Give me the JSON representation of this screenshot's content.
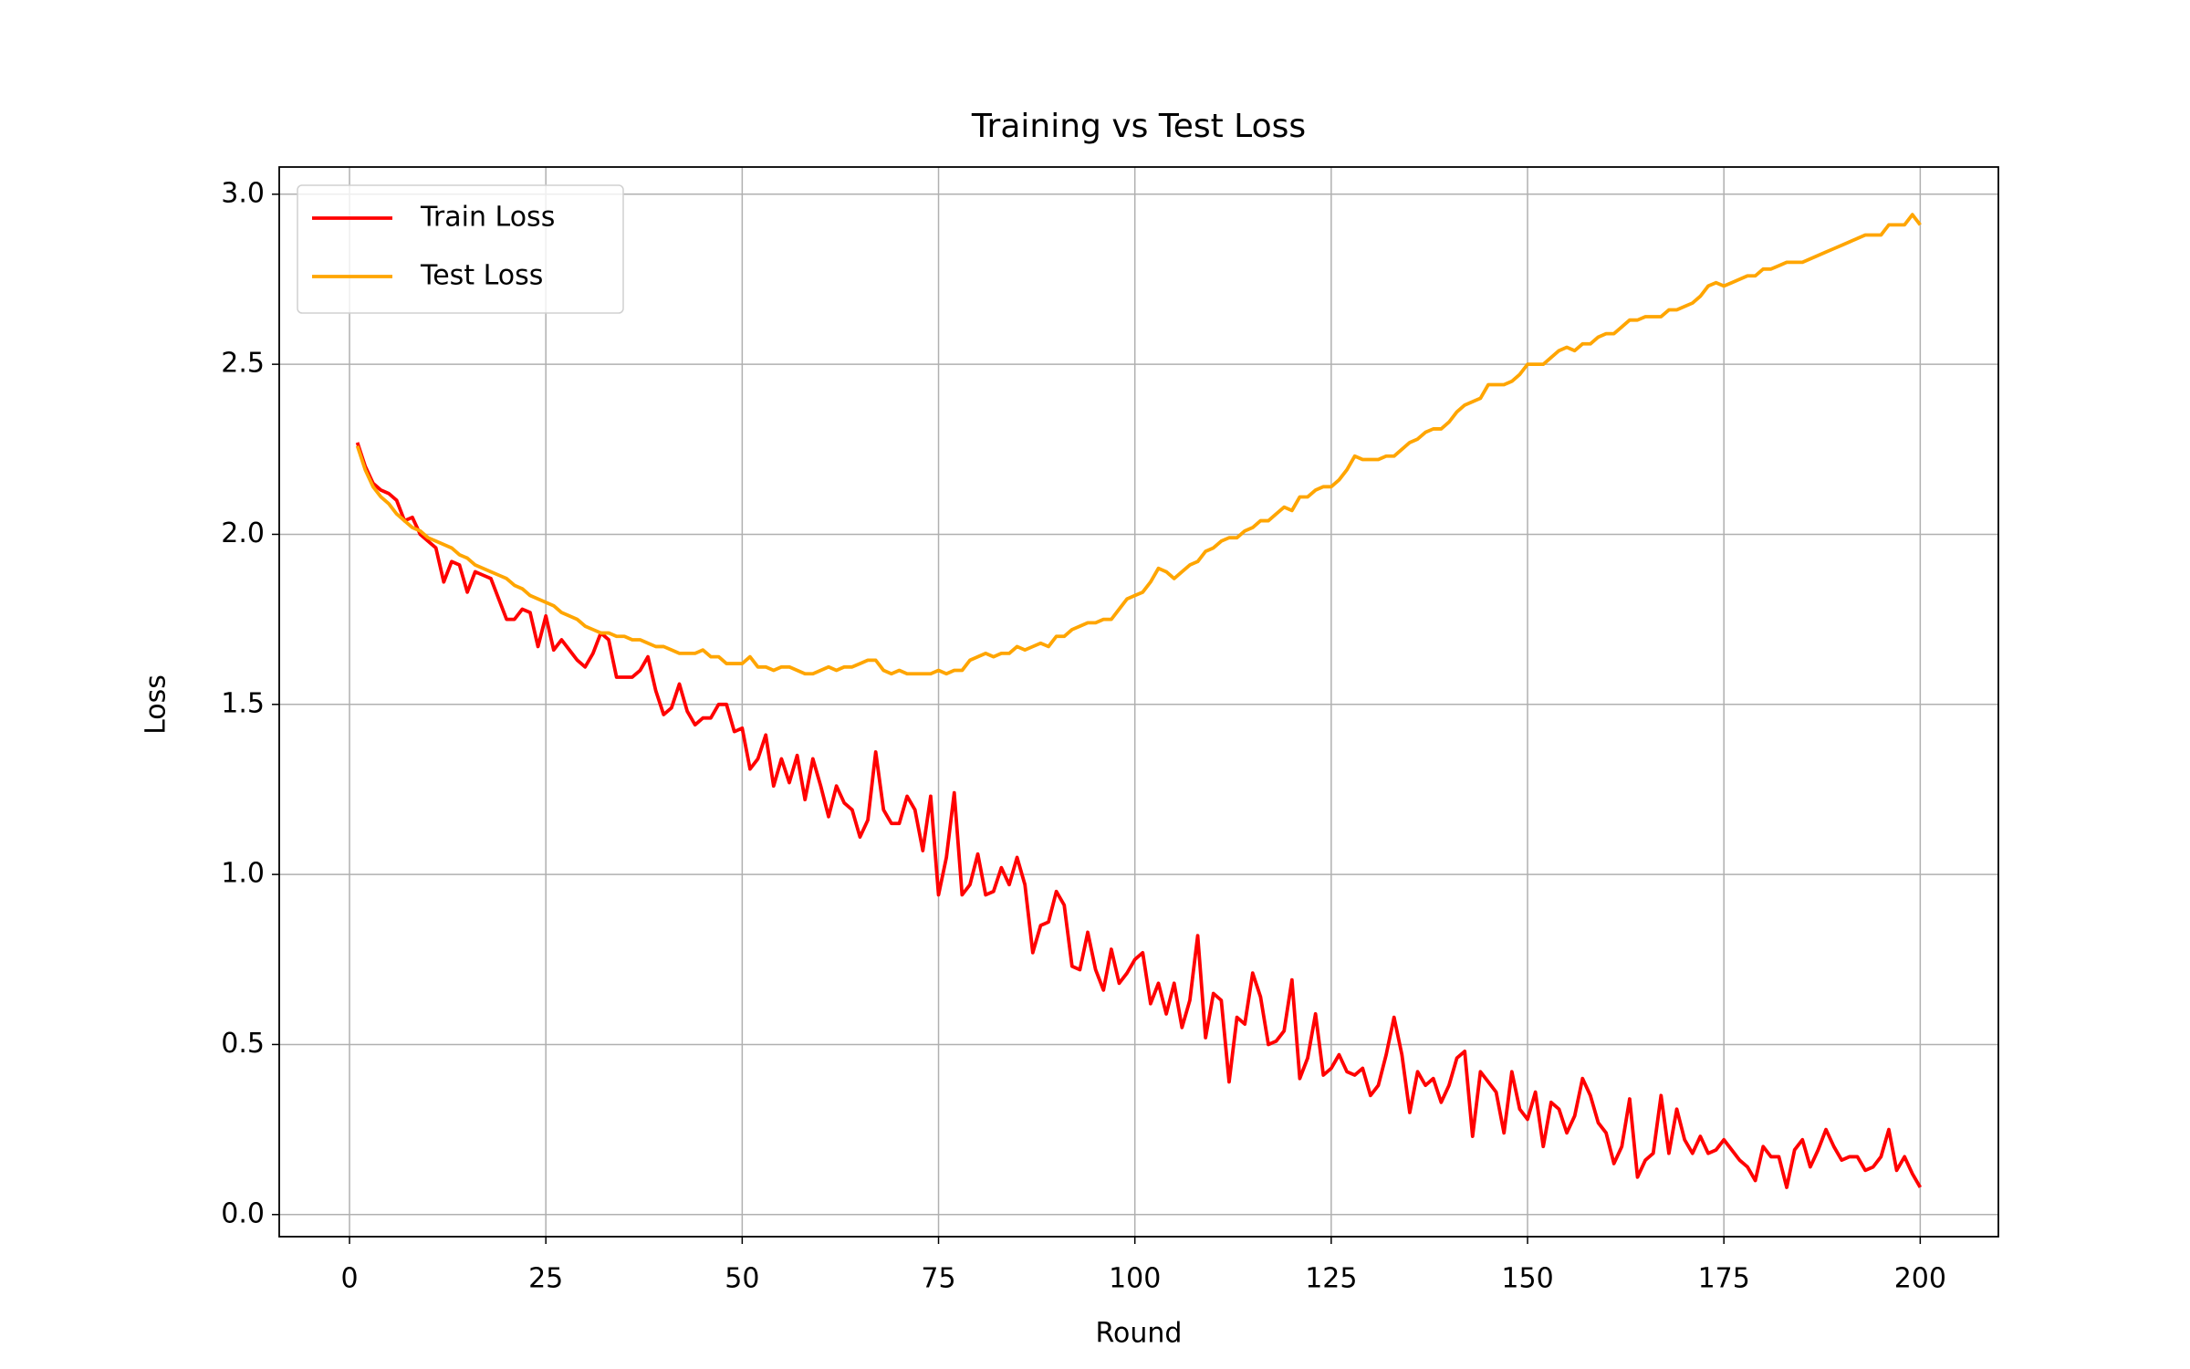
{
  "chart_data": {
    "type": "line",
    "title": "Training vs Test Loss",
    "x_label": "Round",
    "y_label": "Loss",
    "xlim": [
      -8.95,
      209.95
    ],
    "xticks": [
      0,
      25,
      50,
      75,
      100,
      125,
      150,
      175,
      200
    ],
    "ylim": [
      -0.065,
      3.08
    ],
    "yticks": [
      {
        "value": 0,
        "label": "0.0"
      },
      {
        "value": 0.5,
        "label": "0.5"
      },
      {
        "value": 1,
        "label": "1.0"
      },
      {
        "value": 1.5,
        "label": "1.5"
      },
      {
        "value": 2,
        "label": "2.0"
      },
      {
        "value": 2.5,
        "label": "2.5"
      },
      {
        "value": 3,
        "label": "3.0"
      }
    ],
    "grid": true,
    "legend": "upper left",
    "x": [
      1,
      2,
      3,
      4,
      5,
      6,
      7,
      8,
      9,
      10,
      11,
      12,
      13,
      14,
      15,
      16,
      17,
      18,
      19,
      20,
      21,
      22,
      23,
      24,
      25,
      26,
      27,
      28,
      29,
      30,
      31,
      32,
      33,
      34,
      35,
      36,
      37,
      38,
      39,
      40,
      41,
      42,
      43,
      44,
      45,
      46,
      47,
      48,
      49,
      50,
      51,
      52,
      53,
      54,
      55,
      56,
      57,
      58,
      59,
      60,
      61,
      62,
      63,
      64,
      65,
      66,
      67,
      68,
      69,
      70,
      71,
      72,
      73,
      74,
      75,
      76,
      77,
      78,
      79,
      80,
      81,
      82,
      83,
      84,
      85,
      86,
      87,
      88,
      89,
      90,
      91,
      92,
      93,
      94,
      95,
      96,
      97,
      98,
      99,
      100,
      101,
      102,
      103,
      104,
      105,
      106,
      107,
      108,
      109,
      110,
      111,
      112,
      113,
      114,
      115,
      116,
      117,
      118,
      119,
      120,
      121,
      122,
      123,
      124,
      125,
      126,
      127,
      128,
      129,
      130,
      131,
      132,
      133,
      134,
      135,
      136,
      137,
      138,
      139,
      140,
      141,
      142,
      143,
      144,
      145,
      146,
      147,
      148,
      149,
      150,
      151,
      152,
      153,
      154,
      155,
      156,
      157,
      158,
      159,
      160,
      161,
      162,
      163,
      164,
      165,
      166,
      167,
      168,
      169,
      170,
      171,
      172,
      173,
      174,
      175,
      176,
      177,
      178,
      179,
      180,
      181,
      182,
      183,
      184,
      185,
      186,
      187,
      188,
      189,
      190,
      191,
      192,
      193,
      194,
      195,
      196,
      197,
      198,
      199,
      200
    ],
    "series": [
      {
        "name": "Train Loss",
        "color": "#ff0000",
        "values": [
          2.27,
          2.2,
          2.15,
          2.13,
          2.12,
          2.1,
          2.04,
          2.05,
          2.0,
          1.98,
          1.96,
          1.86,
          1.92,
          1.91,
          1.83,
          1.89,
          1.88,
          1.87,
          1.81,
          1.75,
          1.75,
          1.78,
          1.77,
          1.67,
          1.76,
          1.66,
          1.69,
          1.66,
          1.63,
          1.61,
          1.65,
          1.71,
          1.69,
          1.58,
          1.58,
          1.58,
          1.6,
          1.64,
          1.54,
          1.47,
          1.49,
          1.56,
          1.48,
          1.44,
          1.46,
          1.46,
          1.5,
          1.5,
          1.42,
          1.43,
          1.31,
          1.34,
          1.41,
          1.26,
          1.34,
          1.27,
          1.35,
          1.22,
          1.34,
          1.26,
          1.17,
          1.26,
          1.21,
          1.19,
          1.11,
          1.16,
          1.36,
          1.19,
          1.15,
          1.15,
          1.23,
          1.19,
          1.07,
          1.23,
          0.94,
          1.05,
          1.24,
          0.94,
          0.97,
          1.06,
          0.94,
          0.95,
          1.02,
          0.97,
          1.05,
          0.97,
          0.77,
          0.85,
          0.86,
          0.95,
          0.91,
          0.73,
          0.72,
          0.83,
          0.72,
          0.66,
          0.78,
          0.68,
          0.71,
          0.75,
          0.77,
          0.62,
          0.68,
          0.59,
          0.68,
          0.55,
          0.63,
          0.82,
          0.52,
          0.65,
          0.63,
          0.39,
          0.58,
          0.56,
          0.71,
          0.64,
          0.5,
          0.51,
          0.54,
          0.69,
          0.4,
          0.46,
          0.59,
          0.41,
          0.43,
          0.47,
          0.42,
          0.41,
          0.43,
          0.35,
          0.38,
          0.47,
          0.58,
          0.47,
          0.3,
          0.42,
          0.38,
          0.4,
          0.33,
          0.38,
          0.46,
          0.48,
          0.23,
          0.42,
          0.39,
          0.36,
          0.24,
          0.42,
          0.31,
          0.28,
          0.36,
          0.2,
          0.33,
          0.31,
          0.24,
          0.29,
          0.4,
          0.35,
          0.27,
          0.24,
          0.15,
          0.2,
          0.34,
          0.11,
          0.16,
          0.18,
          0.35,
          0.18,
          0.31,
          0.22,
          0.18,
          0.23,
          0.18,
          0.19,
          0.22,
          0.19,
          0.16,
          0.14,
          0.1,
          0.2,
          0.17,
          0.17,
          0.08,
          0.19,
          0.22,
          0.14,
          0.19,
          0.25,
          0.2,
          0.16,
          0.17,
          0.17,
          0.13,
          0.14,
          0.17,
          0.25,
          0.13,
          0.17,
          0.12,
          0.08
        ]
      },
      {
        "name": "Test Loss",
        "color": "#ffa500",
        "values": [
          2.26,
          2.19,
          2.14,
          2.11,
          2.09,
          2.06,
          2.04,
          2.02,
          2.01,
          1.99,
          1.98,
          1.97,
          1.96,
          1.94,
          1.93,
          1.91,
          1.9,
          1.89,
          1.88,
          1.87,
          1.85,
          1.84,
          1.82,
          1.81,
          1.8,
          1.79,
          1.77,
          1.76,
          1.75,
          1.73,
          1.72,
          1.71,
          1.71,
          1.7,
          1.7,
          1.69,
          1.69,
          1.68,
          1.67,
          1.67,
          1.66,
          1.65,
          1.65,
          1.65,
          1.66,
          1.64,
          1.64,
          1.62,
          1.62,
          1.62,
          1.64,
          1.61,
          1.61,
          1.6,
          1.61,
          1.61,
          1.6,
          1.59,
          1.59,
          1.6,
          1.61,
          1.6,
          1.61,
          1.61,
          1.62,
          1.63,
          1.63,
          1.6,
          1.59,
          1.6,
          1.59,
          1.59,
          1.59,
          1.59,
          1.6,
          1.59,
          1.6,
          1.6,
          1.63,
          1.64,
          1.65,
          1.64,
          1.65,
          1.65,
          1.67,
          1.66,
          1.67,
          1.68,
          1.67,
          1.7,
          1.7,
          1.72,
          1.73,
          1.74,
          1.74,
          1.75,
          1.75,
          1.78,
          1.81,
          1.82,
          1.83,
          1.86,
          1.9,
          1.89,
          1.87,
          1.89,
          1.91,
          1.92,
          1.95,
          1.96,
          1.98,
          1.99,
          1.99,
          2.01,
          2.02,
          2.04,
          2.04,
          2.06,
          2.08,
          2.07,
          2.11,
          2.11,
          2.13,
          2.14,
          2.14,
          2.16,
          2.19,
          2.23,
          2.22,
          2.22,
          2.22,
          2.23,
          2.23,
          2.25,
          2.27,
          2.28,
          2.3,
          2.31,
          2.31,
          2.33,
          2.36,
          2.38,
          2.39,
          2.4,
          2.44,
          2.44,
          2.44,
          2.45,
          2.47,
          2.5,
          2.5,
          2.5,
          2.52,
          2.54,
          2.55,
          2.54,
          2.56,
          2.56,
          2.58,
          2.59,
          2.59,
          2.61,
          2.63,
          2.63,
          2.64,
          2.64,
          2.64,
          2.66,
          2.66,
          2.67,
          2.68,
          2.7,
          2.73,
          2.74,
          2.73,
          2.74,
          2.75,
          2.76,
          2.76,
          2.78,
          2.78,
          2.79,
          2.8,
          2.8,
          2.8,
          2.81,
          2.82,
          2.83,
          2.84,
          2.85,
          2.86,
          2.87,
          2.88,
          2.88,
          2.88,
          2.91,
          2.91,
          2.91,
          2.94,
          2.91
        ]
      }
    ]
  }
}
